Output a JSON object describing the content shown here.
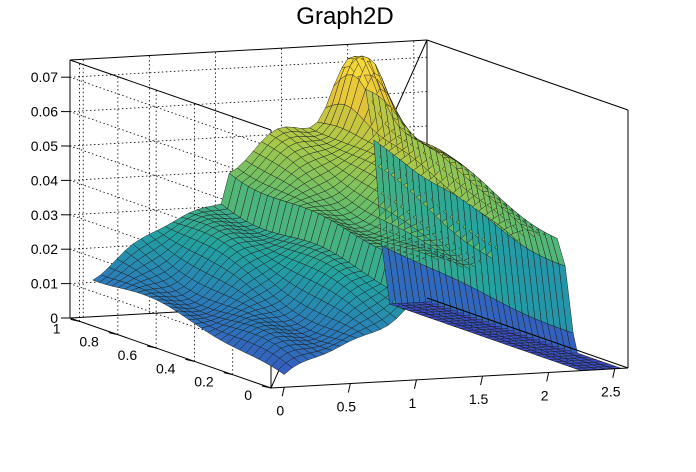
{
  "chart_data": {
    "type": "surface",
    "title": "Graph2D",
    "x": {
      "range": [
        -0.1,
        2.6
      ],
      "ticks": [
        0,
        0.5,
        1,
        1.5,
        2,
        2.5
      ],
      "tick_labels": [
        "0",
        "0.5",
        "1",
        "1.5",
        "2",
        "2.5"
      ]
    },
    "y": {
      "range": [
        0,
        1.05
      ],
      "ticks": [
        0,
        0.2,
        0.4,
        0.6,
        0.8,
        1
      ],
      "tick_labels": [
        "0",
        "0.2",
        "0.4",
        "0.6",
        "0.8",
        "1"
      ]
    },
    "z": {
      "range": [
        0,
        0.075
      ],
      "ticks": [
        0,
        0.01,
        0.02,
        0.03,
        0.04,
        0.05,
        0.06,
        0.07
      ],
      "tick_labels": [
        "0",
        "0.01",
        "0.02",
        "0.03",
        "0.04",
        "0.05",
        "0.06",
        "0.07"
      ]
    },
    "grid": true,
    "palette": "viridis-like (blue to green to yellow)",
    "colors": [
      "#3b4cc0",
      "#2b7bba",
      "#22a2a0",
      "#5dbb6e",
      "#a7c94a",
      "#e3c33a",
      "#ffe13a"
    ],
    "features": [
      {
        "x": 0.0,
        "y": 1.0,
        "z": 0.015
      },
      {
        "x": 0.0,
        "y": 0.0,
        "z": 0.002
      },
      {
        "x": 1.0,
        "y": 0.0,
        "z": 0.014
      },
      {
        "x": 1.05,
        "y": 0.3,
        "z": 0.032
      },
      {
        "x": 1.9,
        "y": 0.9,
        "z": 0.071
      },
      {
        "x": 1.9,
        "y": 0.55,
        "z": 0.056
      },
      {
        "x": 2.0,
        "y": 0.2,
        "z": 0.045
      },
      {
        "x": 2.5,
        "y": 0.5,
        "z": 0.0
      }
    ]
  }
}
